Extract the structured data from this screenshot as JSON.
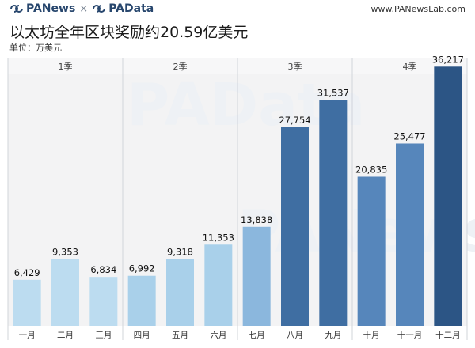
{
  "header": {
    "brand_left": "PANews",
    "times": "×",
    "brand_right": "PAData",
    "site": "www.PANewsLab.com"
  },
  "title": "以太坊全年区块奖励约20.59亿美元",
  "unit": "单位：万美元",
  "watermarks": [
    "PAData",
    "PANews"
  ],
  "colors": {
    "q1": "#bcdcf0",
    "q2": "#a9d0ea",
    "q3_jul": "#8bb7dd",
    "q3": "#3f6ea2",
    "q4": "#5686bb",
    "q4_dec": "#2c5585",
    "panel_bg": "#f3f3f4",
    "separator": "#d0d4da"
  },
  "chart_data": {
    "type": "bar",
    "title": "以太坊全年区块奖励约20.59亿美元",
    "ylabel": "单位：万美元",
    "categories": [
      "一月",
      "二月",
      "三月",
      "四月",
      "五月",
      "六月",
      "七月",
      "八月",
      "九月",
      "十月",
      "十一月",
      "十二月"
    ],
    "values": [
      6429,
      9353,
      6834,
      6992,
      9318,
      11353,
      13838,
      27754,
      31537,
      20835,
      25477,
      36217
    ],
    "value_labels": [
      "6,429",
      "9,353",
      "6,834",
      "6,992",
      "9,318",
      "11,353",
      "13,838",
      "27,754",
      "31,537",
      "20,835",
      "25,477",
      "36,217"
    ],
    "groups": [
      {
        "label": "1季",
        "members": [
          "一月",
          "二月",
          "三月"
        ]
      },
      {
        "label": "2季",
        "members": [
          "四月",
          "五月",
          "六月"
        ]
      },
      {
        "label": "3季",
        "members": [
          "七月",
          "八月",
          "九月"
        ]
      },
      {
        "label": "4季",
        "members": [
          "十月",
          "十一月",
          "十二月"
        ]
      }
    ],
    "ylim": [
      0,
      40000
    ],
    "grid": false
  }
}
